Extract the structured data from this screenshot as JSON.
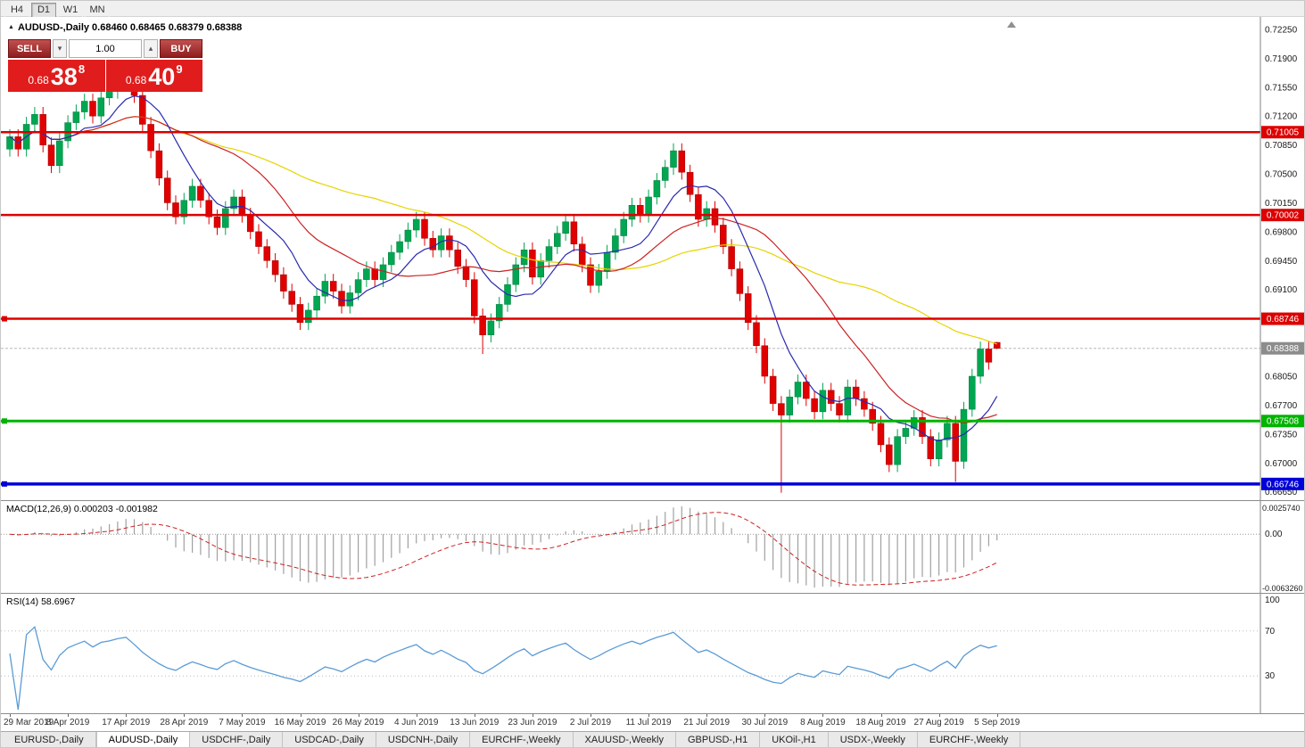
{
  "toolbar": {
    "timeframes": [
      {
        "label": "H4",
        "active": false
      },
      {
        "label": "D1",
        "active": true
      },
      {
        "label": "W1",
        "active": false
      },
      {
        "label": "MN",
        "active": false
      }
    ]
  },
  "chart_header": {
    "symbol_line": "AUDUSD-,Daily 0.68460 0.68465 0.68379 0.68388"
  },
  "trade_panel": {
    "sell_label": "SELL",
    "buy_label": "BUY",
    "volume": "1.00",
    "bid_small": "0.68",
    "bid_big": "38",
    "bid_sup": "8",
    "ask_small": "0.68",
    "ask_big": "40",
    "ask_sup": "9"
  },
  "chart_data": {
    "type": "candlestick",
    "symbol": "AUDUSD-",
    "timeframe": "Daily",
    "ohlc": {
      "open": "0.68460",
      "high": "0.68465",
      "low": "0.68379",
      "close": "0.68388"
    },
    "x_labels": [
      "29 Mar 2019",
      "8 Apr 2019",
      "17 Apr 2019",
      "28 Apr 2019",
      "7 May 2019",
      "16 May 2019",
      "26 May 2019",
      "4 Jun 2019",
      "13 Jun 2019",
      "23 Jun 2019",
      "2 Jul 2019",
      "11 Jul 2019",
      "21 Jul 2019",
      "30 Jul 2019",
      "8 Aug 2019",
      "18 Aug 2019",
      "27 Aug 2019",
      "5 Sep 2019"
    ],
    "bars_per_label": 7,
    "first_open": 0.708,
    "wick_extension": 0.0009,
    "closes": [
      0.7095,
      0.708,
      0.711,
      0.7122,
      0.7085,
      0.706,
      0.709,
      0.7112,
      0.7125,
      0.7138,
      0.712,
      0.7142,
      0.715,
      0.7163,
      0.7172,
      0.7145,
      0.711,
      0.7078,
      0.7045,
      0.7015,
      0.6998,
      0.7018,
      0.7035,
      0.7018,
      0.6998,
      0.6985,
      0.7008,
      0.7022,
      0.7,
      0.698,
      0.6962,
      0.6945,
      0.6928,
      0.6908,
      0.6892,
      0.687,
      0.6885,
      0.6902,
      0.692,
      0.6908,
      0.689,
      0.6906,
      0.6922,
      0.6935,
      0.6922,
      0.694,
      0.6955,
      0.6968,
      0.6982,
      0.6995,
      0.6972,
      0.6958,
      0.6975,
      0.6958,
      0.6938,
      0.6922,
      0.6878,
      0.6855,
      0.6872,
      0.6892,
      0.6916,
      0.694,
      0.6958,
      0.6925,
      0.6945,
      0.6962,
      0.6978,
      0.6992,
      0.6965,
      0.694,
      0.6915,
      0.6932,
      0.6955,
      0.6975,
      0.6995,
      0.7012,
      0.7,
      0.7022,
      0.7042,
      0.7058,
      0.7078,
      0.7052,
      0.7025,
      0.6995,
      0.7008,
      0.6988,
      0.6962,
      0.6935,
      0.6905,
      0.687,
      0.6842,
      0.6805,
      0.6772,
      0.6758,
      0.678,
      0.6798,
      0.6778,
      0.6762,
      0.6788,
      0.6772,
      0.6758,
      0.6792,
      0.6778,
      0.6765,
      0.6748,
      0.6722,
      0.6698,
      0.6732,
      0.6742,
      0.6755,
      0.6732,
      0.6705,
      0.6728,
      0.6748,
      0.6702,
      0.6765,
      0.6805,
      0.6838,
      0.6822,
      0.68388
    ],
    "wick_overrides": {
      "14": {
        "high": 0.7176
      },
      "57": {
        "low": 0.6832
      },
      "93": {
        "low": 0.6664
      },
      "114": {
        "low": 0.6677
      }
    },
    "last_ohlc": {
      "open": 0.6846,
      "high": 0.68465,
      "low": 0.68379,
      "close": 0.68388
    },
    "colors": {
      "up": "#00a651",
      "down": "#e00000"
    },
    "y_axis": {
      "min": 0.6655,
      "max": 0.724,
      "tick_labels": [
        "0.72250",
        "0.71900",
        "0.71550",
        "0.71200",
        "0.70850",
        "0.70500",
        "0.70150",
        "0.69800",
        "0.69450",
        "0.69100",
        "0.68050",
        "0.67700",
        "0.67350",
        "0.67000",
        "0.66650"
      ]
    },
    "hlines": [
      {
        "value": 0.71005,
        "label": "0.71005",
        "color": "#dd0000",
        "width": 2.5,
        "handle": false
      },
      {
        "value": 0.70002,
        "label": "0.70002",
        "color": "#dd0000",
        "width": 2.5,
        "handle": false
      },
      {
        "value": 0.68746,
        "label": "0.68746",
        "color": "#dd0000",
        "width": 2.5,
        "handle": true
      },
      {
        "value": 0.67508,
        "label": "0.67508",
        "color": "#00b400",
        "width": 3,
        "handle": true
      },
      {
        "value": 0.66746,
        "label": "0.66746",
        "color": "#0000d8",
        "width": 3.5,
        "handle": true
      }
    ],
    "current_price": {
      "value": 0.68388,
      "label": "0.68388",
      "color": "#8c8c8c"
    },
    "ma": [
      {
        "period": 45,
        "color": "#e6d400"
      },
      {
        "period": 20,
        "color": "#cc2222"
      },
      {
        "period": 8,
        "color": "#2a2ab0"
      }
    ],
    "macd": {
      "header": "MACD(12,26,9) 0.000203 -0.001982",
      "fast": 12,
      "slow": 26,
      "signal_period": 9,
      "hist_color": "#a0a0a0",
      "signal_color": "#cc2222",
      "axis_labels": {
        "top": "0.0025740",
        "zero": "0.00",
        "bottom": "-0.0063260"
      }
    },
    "rsi": {
      "header": "RSI(14) 58.6967",
      "period": 14,
      "value": 58.6967,
      "levels": [
        70,
        30
      ],
      "axis_labels": [
        "100",
        "70",
        "30"
      ],
      "color": "#5b9bd5"
    }
  },
  "tabs": [
    {
      "label": "EURUSD-,Daily",
      "active": false
    },
    {
      "label": "AUDUSD-,Daily",
      "active": true
    },
    {
      "label": "USDCHF-,Daily",
      "active": false
    },
    {
      "label": "USDCAD-,Daily",
      "active": false
    },
    {
      "label": "USDCNH-,Daily",
      "active": false
    },
    {
      "label": "EURCHF-,Weekly",
      "active": false
    },
    {
      "label": "XAUUSD-,Weekly",
      "active": false
    },
    {
      "label": "GBPUSD-,H1",
      "active": false
    },
    {
      "label": "UKOil-,H1",
      "active": false
    },
    {
      "label": "USDX-,Weekly",
      "active": false
    },
    {
      "label": "EURCHF-,Weekly",
      "active": false
    }
  ]
}
